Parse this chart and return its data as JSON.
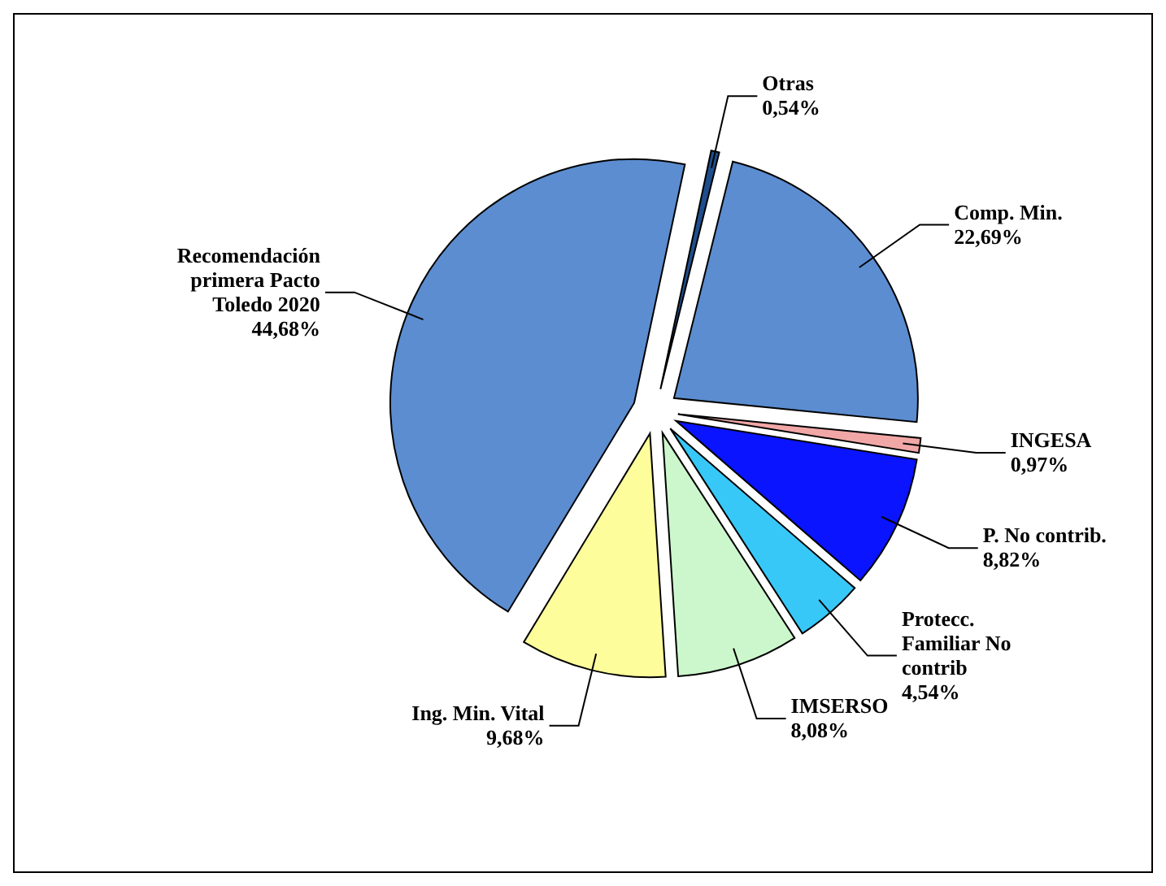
{
  "chart_data": {
    "type": "pie",
    "categories": [
      "Otras",
      "Comp. Min.",
      "INGESA",
      "P. No contrib.",
      "Protecc. Familiar No contrib",
      "IMSERSO",
      "Ing. Min. Vital",
      "Recomendación primera Pacto Toledo 2020"
    ],
    "values": [
      0.54,
      22.69,
      0.97,
      8.82,
      4.54,
      8.08,
      9.68,
      44.68
    ],
    "colors": [
      "#1f4e8c",
      "#5b8dd0",
      "#f2a7a7",
      "#0a14ff",
      "#38c8f8",
      "#ccf7cc",
      "#fdfd9c",
      "#5b8dd0"
    ],
    "value_labels": [
      "0,54%",
      "22,69%",
      "0,97%",
      "8,82%",
      "4,54%",
      "8,08%",
      "9,68%",
      "44,68%"
    ]
  }
}
